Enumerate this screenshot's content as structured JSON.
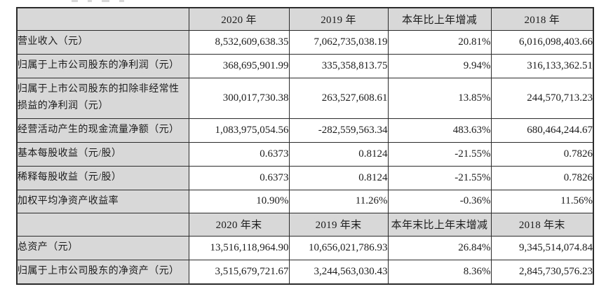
{
  "table": {
    "colors": {
      "header_bg": "#d8d8d8",
      "cell_bg": "#ffffff",
      "border": "#2b2b2b",
      "text": "#1c1c1c"
    },
    "sections": [
      {
        "headers": [
          "",
          "2020 年",
          "2019 年",
          "本年比上年增减",
          "2018 年"
        ],
        "rows": [
          {
            "label": "营业收入（元）",
            "values": [
              "8,532,609,638.35",
              "7,062,735,038.19",
              "20.81%",
              "6,016,098,403.66"
            ]
          },
          {
            "label": "归属于上市公司股东的净利润（元）",
            "values": [
              "368,695,901.99",
              "335,358,813.75",
              "9.94%",
              "316,133,362.51"
            ]
          },
          {
            "label": "归属于上市公司股东的扣除非经常性损益的净利润（元）",
            "values": [
              "300,017,730.38",
              "263,527,608.61",
              "13.85%",
              "244,570,713.23"
            ]
          },
          {
            "label": "经营活动产生的现金流量净额（元）",
            "values": [
              "1,083,975,054.56",
              "-282,559,563.34",
              "483.63%",
              "680,464,244.67"
            ]
          },
          {
            "label": "基本每股收益（元/股）",
            "values": [
              "0.6373",
              "0.8124",
              "-21.55%",
              "0.7826"
            ]
          },
          {
            "label": "稀释每股收益（元/股）",
            "values": [
              "0.6373",
              "0.8124",
              "-21.55%",
              "0.7826"
            ]
          },
          {
            "label": "加权平均净资产收益率",
            "values": [
              "10.90%",
              "11.26%",
              "-0.36%",
              "11.56%"
            ]
          }
        ]
      },
      {
        "headers": [
          "",
          "2020 年末",
          "2019 年末",
          "本年末比上年末增减",
          "2018 年末"
        ],
        "rows": [
          {
            "label": "总资产（元）",
            "values": [
              "13,516,118,964.90",
              "10,656,021,786.93",
              "26.84%",
              "9,345,514,074.84"
            ]
          },
          {
            "label": "归属于上市公司股东的净资产（元）",
            "values": [
              "3,515,679,721.67",
              "3,244,563,030.43",
              "8.36%",
              "2,845,730,576.23"
            ]
          }
        ]
      }
    ]
  }
}
